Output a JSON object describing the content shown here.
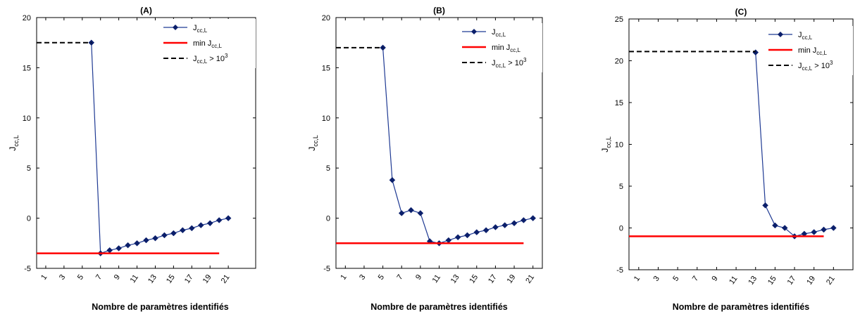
{
  "chart_data": [
    {
      "type": "line",
      "title": "(A)",
      "xlabel": "Nombre de paramètres identifiés",
      "ylabel_main": "J",
      "ylabel_sub": "cc,L",
      "xlim": [
        0,
        24
      ],
      "ylim": [
        -5,
        20
      ],
      "xticks": [
        1,
        3,
        5,
        7,
        9,
        11,
        13,
        15,
        17,
        19,
        21
      ],
      "yticks": [
        -5,
        0,
        5,
        10,
        15,
        20
      ],
      "legend_position": "top-right",
      "series": [
        {
          "name": "Jcc,L",
          "label_main": "J",
          "label_sub": "cc,L",
          "label_extra": "",
          "style": "line-diamond",
          "color": "#1f3a93",
          "x": [
            6,
            7,
            8,
            9,
            10,
            11,
            12,
            13,
            14,
            15,
            16,
            17,
            18,
            19,
            20,
            21
          ],
          "y": [
            17.5,
            -3.5,
            -3.2,
            -3.0,
            -2.7,
            -2.5,
            -2.2,
            -2.0,
            -1.7,
            -1.5,
            -1.2,
            -1.0,
            -0.7,
            -0.5,
            -0.2,
            0.0
          ]
        },
        {
          "name": "min Jcc,L",
          "label_main": "min J",
          "label_sub": "cc,L",
          "label_extra": "",
          "style": "line",
          "color": "#ff0000",
          "x": [
            0,
            20
          ],
          "y": [
            -3.5,
            -3.5
          ]
        },
        {
          "name": "Jcc,L > 10^3",
          "label_main": "J",
          "label_sub": "cc,L",
          "label_extra": " > 10",
          "label_sup": "3",
          "style": "dashed",
          "color": "#000000",
          "x": [
            0,
            6
          ],
          "y": [
            17.5,
            17.5
          ]
        }
      ]
    },
    {
      "type": "line",
      "title": "(B)",
      "xlabel": "Nombre de paramètres identifiés",
      "ylabel_main": "J",
      "ylabel_sub": "cc,L",
      "xlim": [
        0,
        22
      ],
      "ylim": [
        -5,
        20
      ],
      "xticks": [
        1,
        3,
        5,
        7,
        9,
        11,
        13,
        15,
        17,
        19,
        21
      ],
      "yticks": [
        -5,
        0,
        5,
        10,
        15,
        20
      ],
      "legend_position": "top-right",
      "series": [
        {
          "name": "Jcc,L",
          "label_main": "J",
          "label_sub": "cc,L",
          "label_extra": "",
          "style": "line-diamond",
          "color": "#1f3a93",
          "x": [
            5,
            6,
            7,
            8,
            9,
            10,
            11,
            12,
            13,
            14,
            15,
            16,
            17,
            18,
            19,
            20,
            21
          ],
          "y": [
            17.0,
            3.8,
            0.5,
            0.8,
            0.5,
            -2.3,
            -2.5,
            -2.2,
            -1.9,
            -1.7,
            -1.4,
            -1.2,
            -0.9,
            -0.7,
            -0.5,
            -0.2,
            0.0
          ]
        },
        {
          "name": "min Jcc,L",
          "label_main": "min J",
          "label_sub": "cc,L",
          "label_extra": "",
          "style": "line",
          "color": "#ff0000",
          "x": [
            0,
            20
          ],
          "y": [
            -2.5,
            -2.5
          ]
        },
        {
          "name": "Jcc,L > 10^3",
          "label_main": "J",
          "label_sub": "cc,L",
          "label_extra": " > 10",
          "label_sup": "3",
          "style": "dashed",
          "color": "#000000",
          "x": [
            0,
            5
          ],
          "y": [
            17.0,
            17.0
          ]
        }
      ]
    },
    {
      "type": "line",
      "title": "(C)",
      "xlabel": "Nombre de paramètres identifiés",
      "ylabel_main": "J",
      "ylabel_sub": "cc,L",
      "xlim": [
        0,
        23
      ],
      "ylim": [
        -5,
        25
      ],
      "xticks": [
        1,
        3,
        5,
        7,
        9,
        11,
        13,
        15,
        17,
        19,
        21
      ],
      "yticks": [
        -5,
        0,
        5,
        10,
        15,
        20,
        25
      ],
      "legend_position": "top-right",
      "series": [
        {
          "name": "Jcc,L",
          "label_main": "J",
          "label_sub": "cc,L",
          "label_extra": "",
          "style": "line-diamond",
          "color": "#1f3a93",
          "x": [
            13,
            14,
            15,
            16,
            17,
            18,
            19,
            20,
            21
          ],
          "y": [
            21.0,
            2.7,
            0.3,
            0.0,
            -1.0,
            -0.7,
            -0.5,
            -0.2,
            0.0
          ]
        },
        {
          "name": "min Jcc,L",
          "label_main": "min J",
          "label_sub": "cc,L",
          "label_extra": "",
          "style": "line",
          "color": "#ff0000",
          "x": [
            0,
            20
          ],
          "y": [
            -1.0,
            -1.0
          ]
        },
        {
          "name": "Jcc,L > 10^3",
          "label_main": "J",
          "label_sub": "cc,L",
          "label_extra": " > 10",
          "label_sup": "3",
          "style": "dashed",
          "color": "#000000",
          "x": [
            0,
            13
          ],
          "y": [
            21.1,
            21.1
          ]
        }
      ]
    }
  ]
}
